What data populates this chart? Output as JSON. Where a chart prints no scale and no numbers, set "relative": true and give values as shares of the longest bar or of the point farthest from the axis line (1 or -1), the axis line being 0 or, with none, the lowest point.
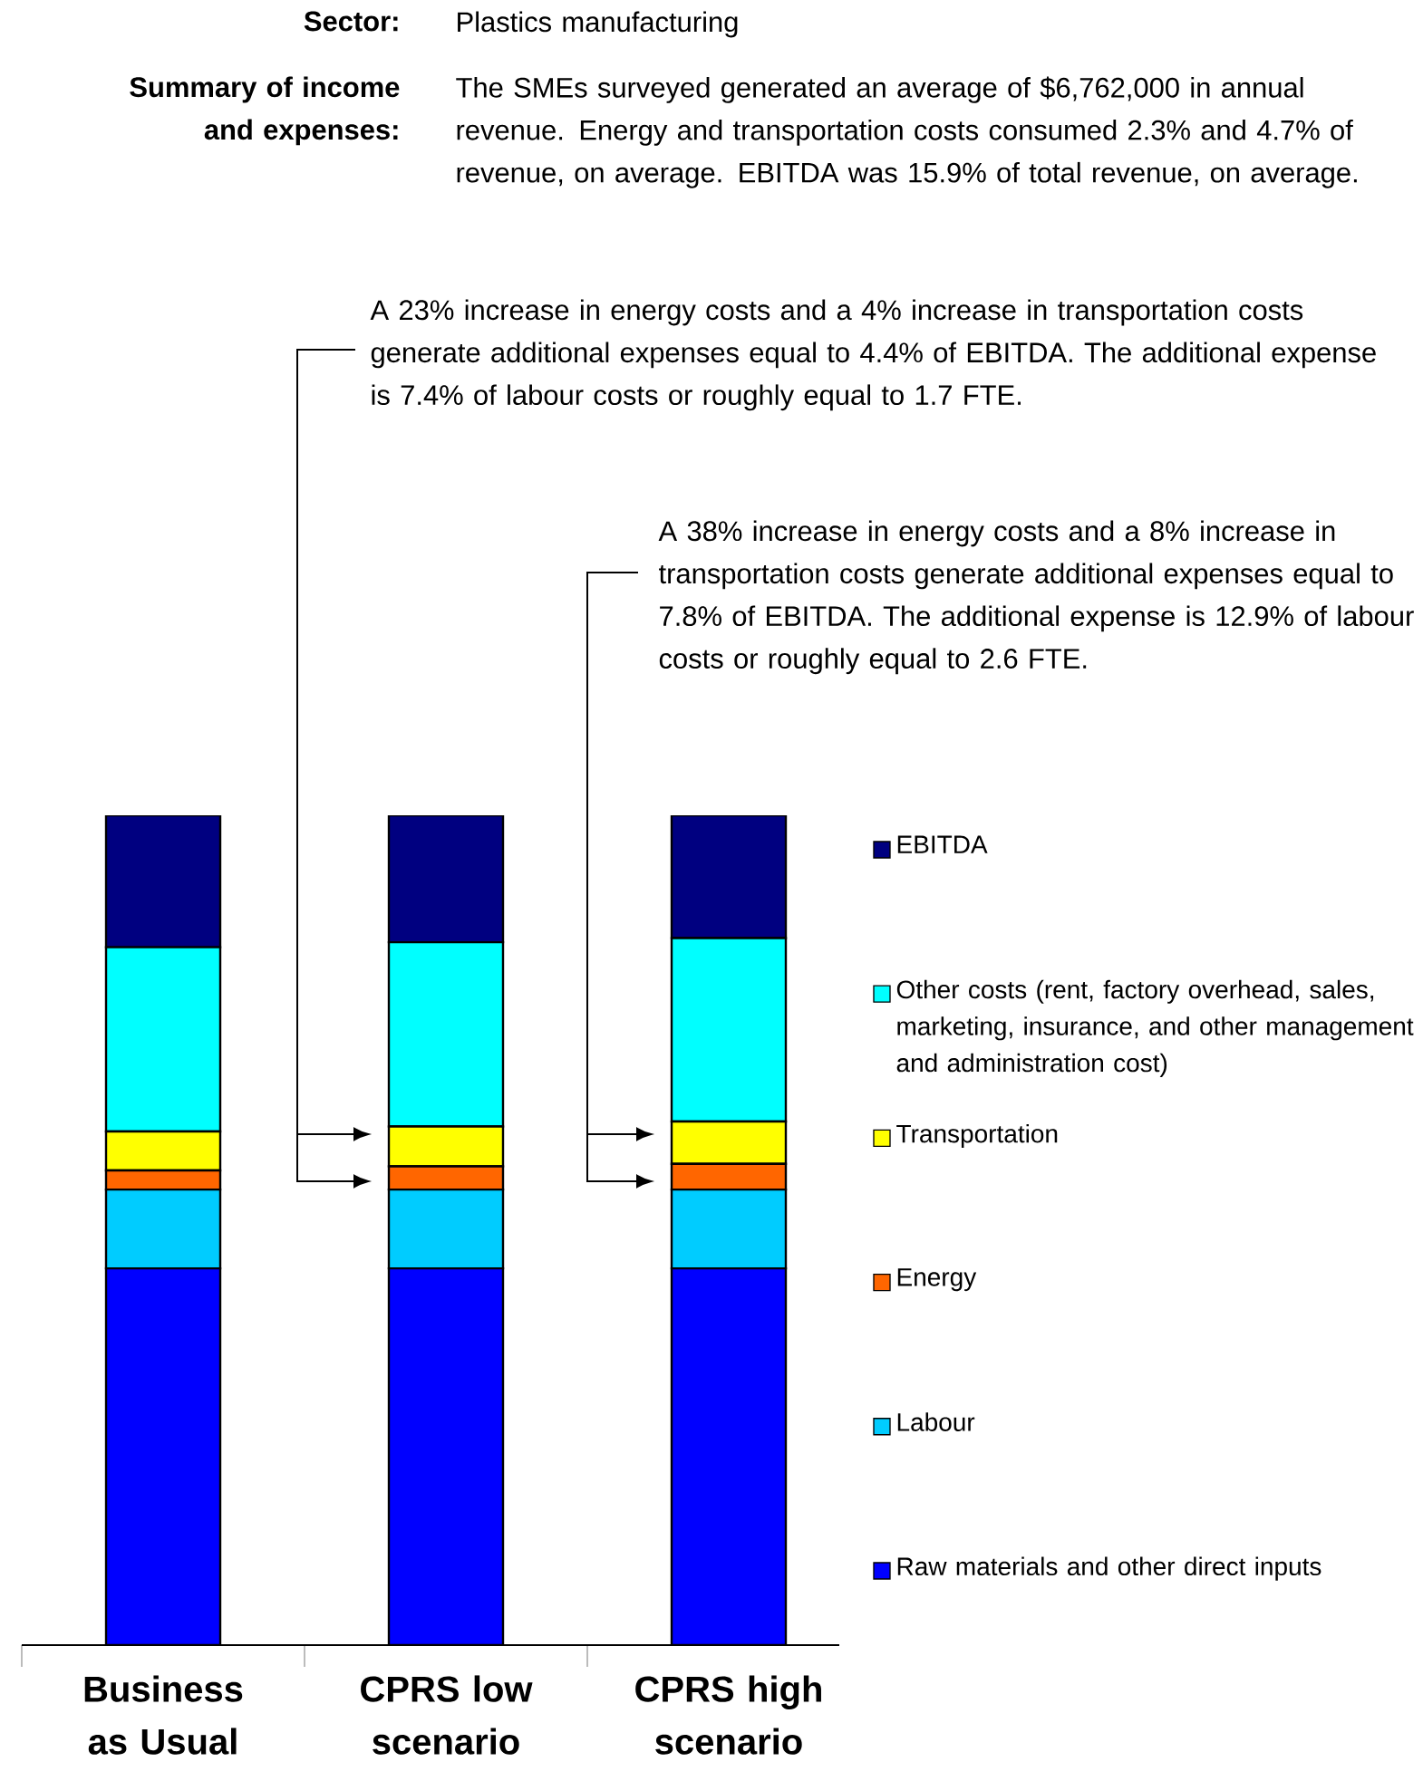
{
  "chart_data": {
    "type": "bar",
    "stacked": true,
    "relative": true,
    "categories": [
      "Business as Usual",
      "CPRS low scenario",
      "CPRS high scenario"
    ],
    "series": [
      {
        "name": "Raw materials and other direct inputs",
        "color": "#0000ff",
        "values": [
          0.454,
          0.454,
          0.454
        ]
      },
      {
        "name": "Labour",
        "color": "#00ccff",
        "values": [
          0.095,
          0.095,
          0.095
        ]
      },
      {
        "name": "Energy",
        "color": "#ff6600",
        "values": [
          0.023,
          0.028,
          0.031
        ]
      },
      {
        "name": "Transportation",
        "color": "#ffff00",
        "values": [
          0.047,
          0.048,
          0.051
        ]
      },
      {
        "name": "Other costs (rent, factory overhead, sales, marketing, insurance, and other management and administration cost)",
        "color": "#00ffff",
        "values": [
          0.222,
          0.222,
          0.221
        ]
      },
      {
        "name": "EBITDA",
        "color": "#000080",
        "values": [
          0.159,
          0.153,
          0.148
        ]
      }
    ],
    "legend": "right",
    "annotations": [
      "Sector:",
      "Plastics manufacturing",
      "Summary of income and expenses:",
      "The SMEs surveyed generated an average of $6,762,000 in annual revenue. Energy and transportation costs consumed 2.3% and 4.7% of revenue, on average. EBITDA was 15.9% of total revenue, on average.",
      "A 23% increase in energy costs and a 4% increase in transportation costs generate additional expenses equal to 4.4% of EBITDA. The additional expense is 7.4% of labour costs or roughly equal to 1.7 FTE.",
      "A 38% increase in energy costs and a 8% increase in transportation costs generate additional expenses equal to 7.8% of EBITDA. The additional expense is 12.9% of labour costs or roughly equal to 2.6 FTE."
    ]
  }
}
